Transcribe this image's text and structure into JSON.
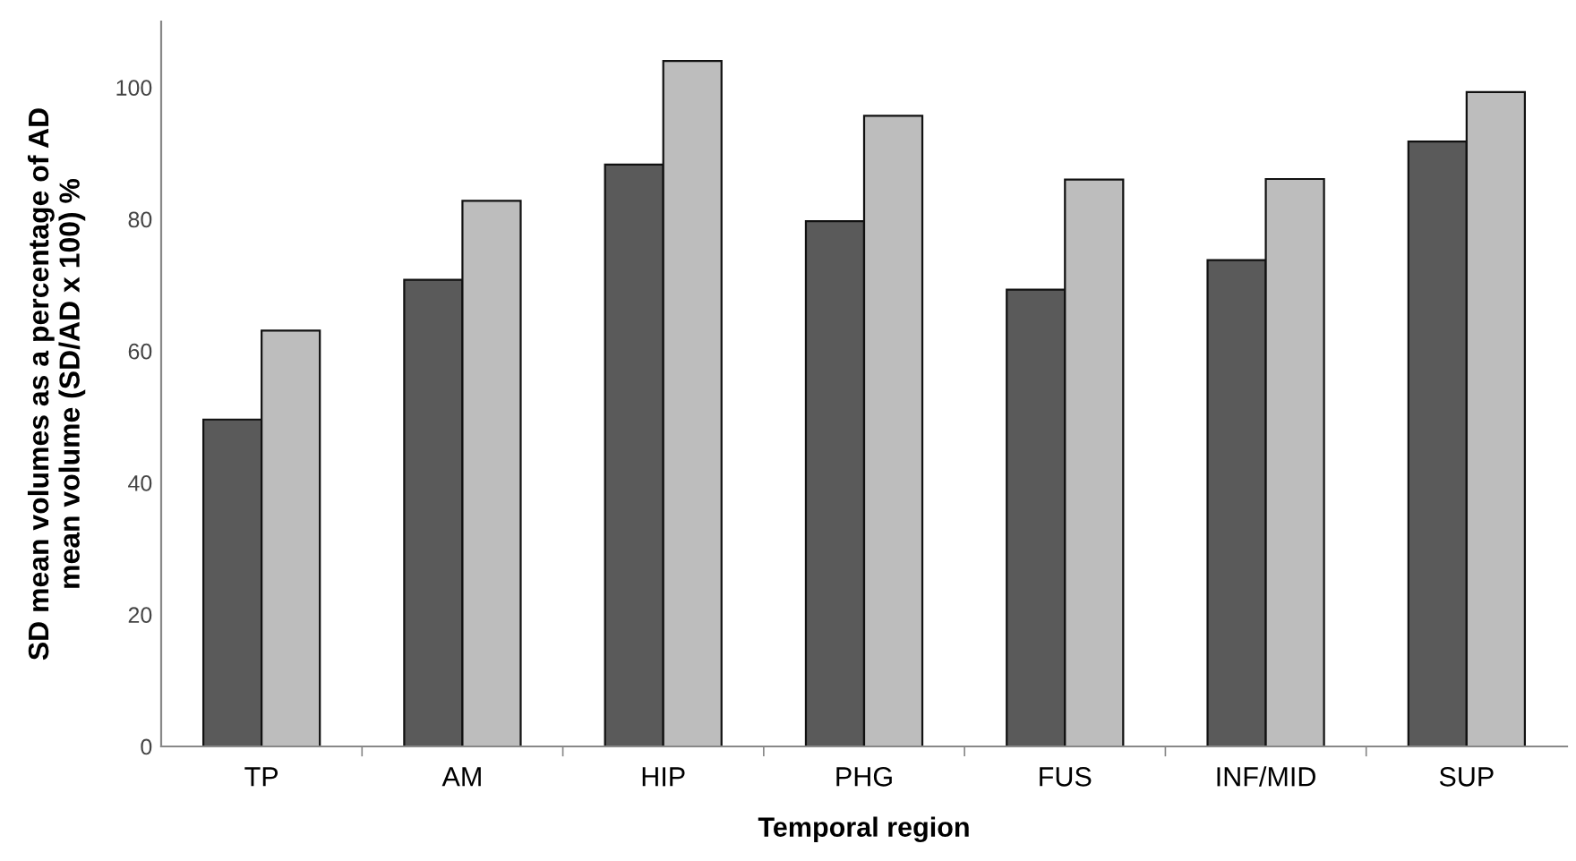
{
  "chart_data": {
    "type": "bar",
    "xlabel": "Temporal region",
    "ylabel": "SD mean volumes as a percentage of AD\nmean volume (SD/AD x 100) %",
    "categories": [
      "TP",
      "AM",
      "HIP",
      "PHG",
      "FUS",
      "INF/MID",
      "SUP"
    ],
    "series": [
      {
        "color": "#5a5a5a",
        "values": [
          49.6,
          70.8,
          88.3,
          79.7,
          69.3,
          73.8,
          91.8
        ]
      },
      {
        "color": "#bdbdbd",
        "values": [
          63.1,
          82.8,
          104.0,
          95.7,
          86.0,
          86.1,
          99.3
        ]
      }
    ],
    "ylim": [
      0,
      110
    ],
    "yticks": [
      0,
      20,
      40,
      60,
      80,
      100
    ],
    "grid": false,
    "legend": false
  }
}
